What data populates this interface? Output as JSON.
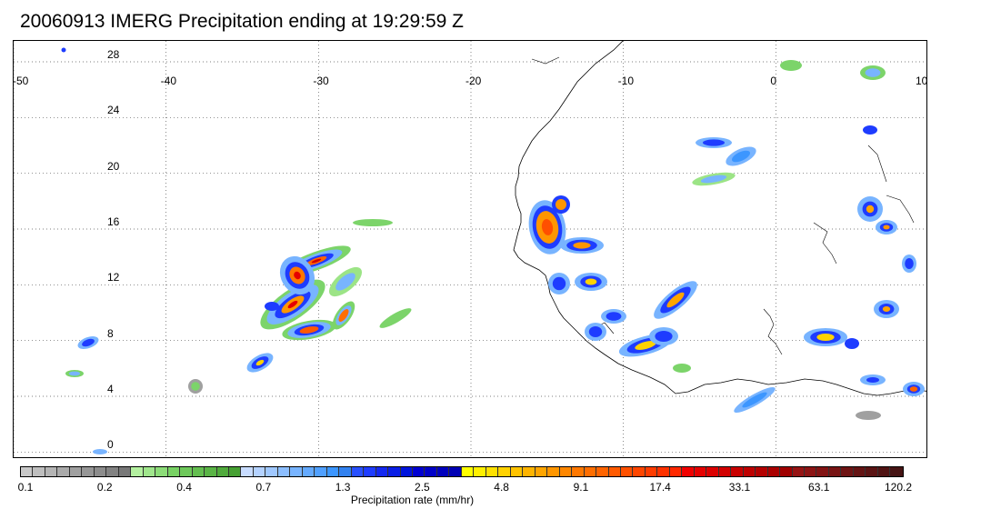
{
  "title": "20060913 IMERG Precipitation ending at 19:29:59 Z",
  "map": {
    "lon_labels": [
      "-50",
      "-40",
      "-30",
      "-20",
      "-10",
      "0",
      "10"
    ],
    "lat_labels": [
      "28",
      "24",
      "20",
      "16",
      "12",
      "8",
      "4",
      "0"
    ],
    "extent": {
      "lon": [
        -50,
        10
      ],
      "lat": [
        -0.5,
        29.5
      ]
    },
    "gridlines": "dotted"
  },
  "colorbar": {
    "unit_label": "Precipitation rate (mm/hr)",
    "tick_labels": [
      "0.1",
      "0.2",
      "0.4",
      "0.7",
      "1.3",
      "2.5",
      "4.8",
      "9.1",
      "17.4",
      "33.1",
      "63.1",
      "120.2"
    ],
    "colors": [
      "#c8c8c8",
      "#bebebe",
      "#b4b4b4",
      "#aaaaaa",
      "#a0a0a0",
      "#969696",
      "#8c8c8c",
      "#828282",
      "#787878",
      "#b4f0a0",
      "#a0e68c",
      "#8cdc78",
      "#78d264",
      "#6ec85a",
      "#64be50",
      "#5ab446",
      "#50aa3c",
      "#46a032",
      "#c8dcff",
      "#b4d2ff",
      "#a0c8ff",
      "#8cbeff",
      "#78b4ff",
      "#64aaff",
      "#50a0ff",
      "#3c96ff",
      "#3282f0",
      "#2850ff",
      "#1e3cff",
      "#1428f0",
      "#0a1ee6",
      "#0014dc",
      "#0000d2",
      "#0000c8",
      "#0000be",
      "#0000b4",
      "#ffff00",
      "#fff000",
      "#ffe100",
      "#ffd200",
      "#ffc300",
      "#ffb400",
      "#ffa500",
      "#ff9600",
      "#ff8700",
      "#ff7800",
      "#ff6e00",
      "#ff6400",
      "#ff5a00",
      "#ff5000",
      "#ff4600",
      "#ff3c00",
      "#ff3200",
      "#ff2800",
      "#f00000",
      "#e60000",
      "#dc0000",
      "#d20000",
      "#c80000",
      "#be0000",
      "#b40000",
      "#aa0000",
      "#a00000",
      "#961414",
      "#8c1414",
      "#821414",
      "#781414",
      "#6e1414",
      "#641414",
      "#5a1414",
      "#501414",
      "#461414"
    ]
  }
}
